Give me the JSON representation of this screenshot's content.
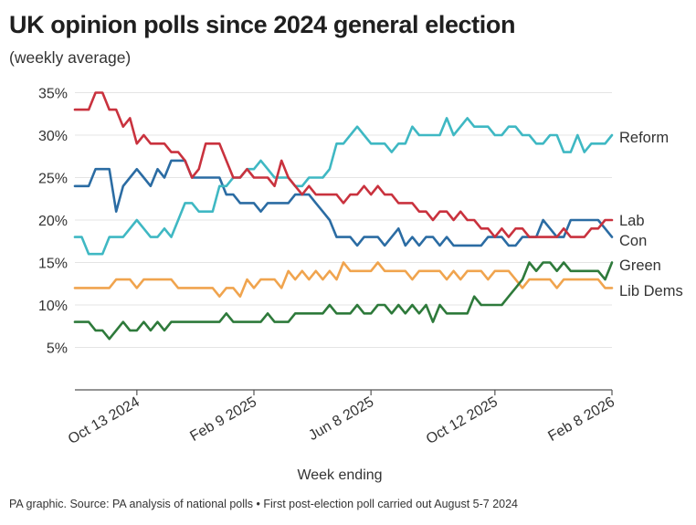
{
  "title": "UK opinion polls since 2024 general election",
  "subtitle": "(weekly average)",
  "source": "PA graphic. Source: PA analysis of national polls • First post-election poll carried out August 5-7 2024",
  "colors": {
    "Reform": "#3fb8c3",
    "Lab": "#c9323e",
    "Con": "#2b6ca3",
    "Green": "#2e7a3b",
    "Lib Dems": "#f0a44e",
    "grid": "#e4e4e4",
    "axis": "#555555",
    "text": "#333333"
  },
  "chart_data": {
    "type": "line",
    "xlabel": "Week ending",
    "ylabel": "",
    "ylim": [
      0,
      35
    ],
    "yticks": [
      5,
      10,
      15,
      20,
      25,
      30,
      35
    ],
    "ytick_labels": [
      "5%",
      "10%",
      "15%",
      "20%",
      "25%",
      "30%",
      "35%"
    ],
    "grid": true,
    "x_start": "2024-08-11",
    "x_end": "2026-02-08",
    "xticks": [
      "Oct 13 2024",
      "Feb 9 2025",
      "Jun 8 2025",
      "Oct 12 2025",
      "Feb 8 2026"
    ],
    "x": [
      "2024-08-11",
      "2024-08-18",
      "2024-08-25",
      "2024-09-01",
      "2024-09-08",
      "2024-09-15",
      "2024-09-22",
      "2024-09-29",
      "2024-10-06",
      "2024-10-13",
      "2024-10-20",
      "2024-10-27",
      "2024-11-03",
      "2024-11-10",
      "2024-11-17",
      "2024-11-24",
      "2024-12-01",
      "2024-12-08",
      "2024-12-15",
      "2024-12-22",
      "2024-12-29",
      "2025-01-05",
      "2025-01-12",
      "2025-01-19",
      "2025-01-26",
      "2025-02-02",
      "2025-02-09",
      "2025-02-16",
      "2025-02-23",
      "2025-03-02",
      "2025-03-09",
      "2025-03-16",
      "2025-03-23",
      "2025-03-30",
      "2025-04-06",
      "2025-04-13",
      "2025-04-20",
      "2025-04-27",
      "2025-05-04",
      "2025-05-11",
      "2025-05-18",
      "2025-05-25",
      "2025-06-01",
      "2025-06-08",
      "2025-06-15",
      "2025-06-22",
      "2025-06-29",
      "2025-07-06",
      "2025-07-13",
      "2025-07-20",
      "2025-07-27",
      "2025-08-03",
      "2025-08-10",
      "2025-08-17",
      "2025-08-24",
      "2025-08-31",
      "2025-09-07",
      "2025-09-14",
      "2025-09-21",
      "2025-09-28",
      "2025-10-05",
      "2025-10-12",
      "2025-10-19",
      "2025-10-26",
      "2025-11-02",
      "2025-11-09",
      "2025-11-16",
      "2025-11-23",
      "2025-11-30",
      "2025-12-07",
      "2025-12-14",
      "2025-12-21",
      "2025-12-28",
      "2026-01-04",
      "2026-01-11",
      "2026-01-18",
      "2026-01-25",
      "2026-02-01",
      "2026-02-08"
    ],
    "series": [
      {
        "name": "Reform",
        "values": [
          18,
          18,
          16,
          16,
          16,
          18,
          18,
          18,
          19,
          20,
          19,
          18,
          18,
          19,
          18,
          20,
          22,
          22,
          21,
          21,
          21,
          24,
          24,
          25,
          25,
          26,
          26,
          27,
          26,
          25,
          25,
          25,
          24,
          24,
          25,
          25,
          25,
          26,
          29,
          29,
          30,
          31,
          30,
          29,
          29,
          29,
          28,
          29,
          29,
          31,
          30,
          30,
          30,
          30,
          32,
          30,
          31,
          32,
          31,
          31,
          31,
          30,
          30,
          31,
          31,
          30,
          30,
          29,
          29,
          30,
          30,
          28,
          28,
          30,
          28,
          29,
          29,
          29,
          30
        ]
      },
      {
        "name": "Lab",
        "values": [
          33,
          33,
          33,
          35,
          35,
          33,
          33,
          31,
          32,
          29,
          30,
          29,
          29,
          29,
          28,
          28,
          27,
          25,
          26,
          29,
          29,
          29,
          27,
          25,
          25,
          26,
          25,
          25,
          25,
          24,
          27,
          25,
          24,
          23,
          24,
          23,
          23,
          23,
          23,
          22,
          23,
          23,
          24,
          23,
          24,
          23,
          23,
          22,
          22,
          22,
          21,
          21,
          20,
          21,
          21,
          20,
          21,
          20,
          20,
          19,
          19,
          18,
          19,
          18,
          19,
          19,
          18,
          18,
          18,
          18,
          18,
          19,
          18,
          18,
          18,
          19,
          19,
          20,
          20
        ]
      },
      {
        "name": "Con",
        "values": [
          24,
          24,
          24,
          26,
          26,
          26,
          21,
          24,
          25,
          26,
          25,
          24,
          26,
          25,
          27,
          27,
          27,
          25,
          25,
          25,
          25,
          25,
          23,
          23,
          22,
          22,
          22,
          21,
          22,
          22,
          22,
          22,
          23,
          23,
          23,
          22,
          21,
          20,
          18,
          18,
          18,
          17,
          18,
          18,
          18,
          17,
          18,
          19,
          17,
          18,
          17,
          18,
          18,
          17,
          18,
          17,
          17,
          17,
          17,
          17,
          18,
          18,
          18,
          17,
          17,
          18,
          18,
          18,
          20,
          19,
          18,
          18,
          20,
          20,
          20,
          20,
          20,
          19,
          18
        ]
      },
      {
        "name": "Green",
        "values": [
          8,
          8,
          8,
          7,
          7,
          6,
          7,
          8,
          7,
          7,
          8,
          7,
          8,
          7,
          8,
          8,
          8,
          8,
          8,
          8,
          8,
          8,
          9,
          8,
          8,
          8,
          8,
          8,
          9,
          8,
          8,
          8,
          9,
          9,
          9,
          9,
          9,
          10,
          9,
          9,
          9,
          10,
          9,
          9,
          10,
          10,
          9,
          10,
          9,
          10,
          9,
          10,
          8,
          10,
          9,
          9,
          9,
          9,
          11,
          10,
          10,
          10,
          10,
          11,
          12,
          13,
          15,
          14,
          15,
          15,
          14,
          15,
          14,
          14,
          14,
          14,
          14,
          13,
          15
        ]
      },
      {
        "name": "Lib Dems",
        "values": [
          12,
          12,
          12,
          12,
          12,
          12,
          13,
          13,
          13,
          12,
          13,
          13,
          13,
          13,
          13,
          12,
          12,
          12,
          12,
          12,
          12,
          11,
          12,
          12,
          11,
          13,
          12,
          13,
          13,
          13,
          12,
          14,
          13,
          14,
          13,
          14,
          13,
          14,
          13,
          15,
          14,
          14,
          14,
          14,
          15,
          14,
          14,
          14,
          14,
          13,
          14,
          14,
          14,
          14,
          13,
          14,
          13,
          14,
          14,
          14,
          13,
          14,
          14,
          14,
          13,
          12,
          13,
          13,
          13,
          13,
          12,
          13,
          13,
          13,
          13,
          13,
          13,
          12,
          12
        ]
      }
    ]
  }
}
